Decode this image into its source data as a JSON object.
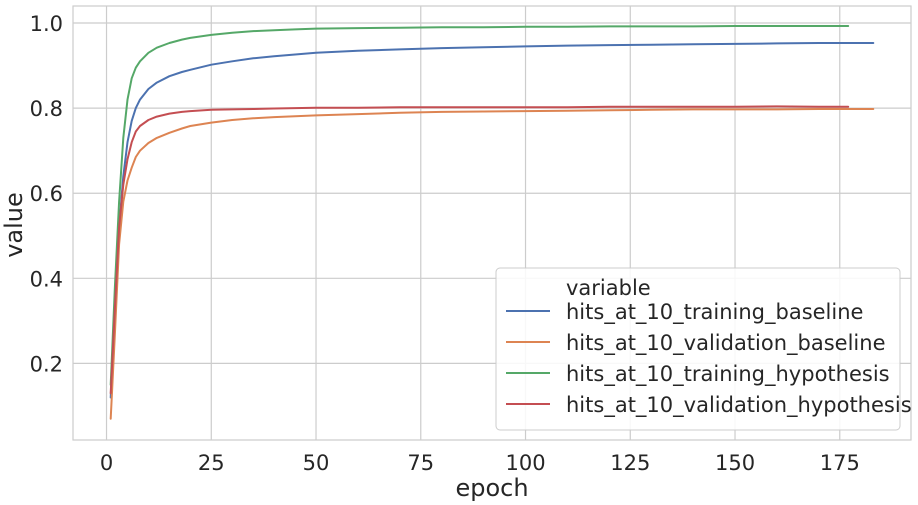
{
  "chart_data": {
    "type": "line",
    "title": "",
    "xlabel": "epoch",
    "ylabel": "value",
    "xlim": [
      -8,
      192
    ],
    "ylim": [
      0.02,
      1.04
    ],
    "xticks": [
      0,
      25,
      50,
      75,
      100,
      125,
      150,
      175
    ],
    "yticks": [
      0.2,
      0.4,
      0.6,
      0.8,
      1.0
    ],
    "ytick_labels": [
      "0.2",
      "0.4",
      "0.6",
      "0.8",
      "1.0"
    ],
    "grid": true,
    "legend": {
      "title": "variable",
      "placement": "bottom-right"
    },
    "series": [
      {
        "name": "hits_at_10_training_baseline",
        "color": "#4c72b0",
        "x": [
          1,
          2,
          3,
          4,
          5,
          6,
          7,
          8,
          10,
          12,
          15,
          18,
          20,
          25,
          30,
          35,
          40,
          45,
          50,
          60,
          70,
          80,
          90,
          100,
          110,
          120,
          130,
          140,
          150,
          160,
          170,
          183
        ],
        "y": [
          0.12,
          0.33,
          0.52,
          0.64,
          0.72,
          0.77,
          0.8,
          0.82,
          0.845,
          0.86,
          0.875,
          0.885,
          0.89,
          0.902,
          0.91,
          0.917,
          0.922,
          0.926,
          0.93,
          0.935,
          0.938,
          0.941,
          0.943,
          0.945,
          0.947,
          0.948,
          0.949,
          0.95,
          0.951,
          0.952,
          0.953,
          0.953
        ]
      },
      {
        "name": "hits_at_10_validation_baseline",
        "color": "#dd8452",
        "x": [
          1,
          2,
          3,
          4,
          5,
          6,
          7,
          8,
          10,
          12,
          15,
          18,
          20,
          25,
          30,
          35,
          40,
          45,
          50,
          60,
          70,
          80,
          90,
          100,
          110,
          120,
          130,
          140,
          150,
          160,
          170,
          183
        ],
        "y": [
          0.07,
          0.27,
          0.48,
          0.58,
          0.63,
          0.66,
          0.685,
          0.7,
          0.718,
          0.73,
          0.742,
          0.752,
          0.758,
          0.766,
          0.772,
          0.776,
          0.779,
          0.781,
          0.783,
          0.786,
          0.789,
          0.791,
          0.792,
          0.793,
          0.794,
          0.795,
          0.796,
          0.797,
          0.797,
          0.797,
          0.798,
          0.798
        ]
      },
      {
        "name": "hits_at_10_training_hypothesis",
        "color": "#55a868",
        "x": [
          1,
          2,
          3,
          4,
          5,
          6,
          7,
          8,
          10,
          12,
          15,
          18,
          20,
          25,
          30,
          35,
          40,
          45,
          50,
          60,
          70,
          80,
          90,
          100,
          110,
          120,
          130,
          140,
          150,
          160,
          170,
          177
        ],
        "y": [
          0.15,
          0.38,
          0.58,
          0.73,
          0.82,
          0.87,
          0.895,
          0.91,
          0.93,
          0.942,
          0.953,
          0.961,
          0.965,
          0.972,
          0.977,
          0.981,
          0.983,
          0.985,
          0.987,
          0.988,
          0.989,
          0.99,
          0.99,
          0.991,
          0.991,
          0.992,
          0.992,
          0.992,
          0.993,
          0.993,
          0.993,
          0.993
        ]
      },
      {
        "name": "hits_at_10_validation_hypothesis",
        "color": "#c44e52",
        "x": [
          1,
          2,
          3,
          4,
          5,
          6,
          7,
          8,
          10,
          12,
          15,
          18,
          20,
          25,
          30,
          35,
          40,
          45,
          50,
          60,
          70,
          80,
          90,
          100,
          110,
          120,
          130,
          140,
          150,
          160,
          170,
          177
        ],
        "y": [
          0.13,
          0.33,
          0.52,
          0.62,
          0.68,
          0.72,
          0.745,
          0.758,
          0.772,
          0.78,
          0.787,
          0.791,
          0.793,
          0.796,
          0.797,
          0.798,
          0.799,
          0.8,
          0.801,
          0.801,
          0.802,
          0.802,
          0.802,
          0.802,
          0.802,
          0.803,
          0.803,
          0.803,
          0.803,
          0.804,
          0.803,
          0.803
        ]
      }
    ]
  }
}
